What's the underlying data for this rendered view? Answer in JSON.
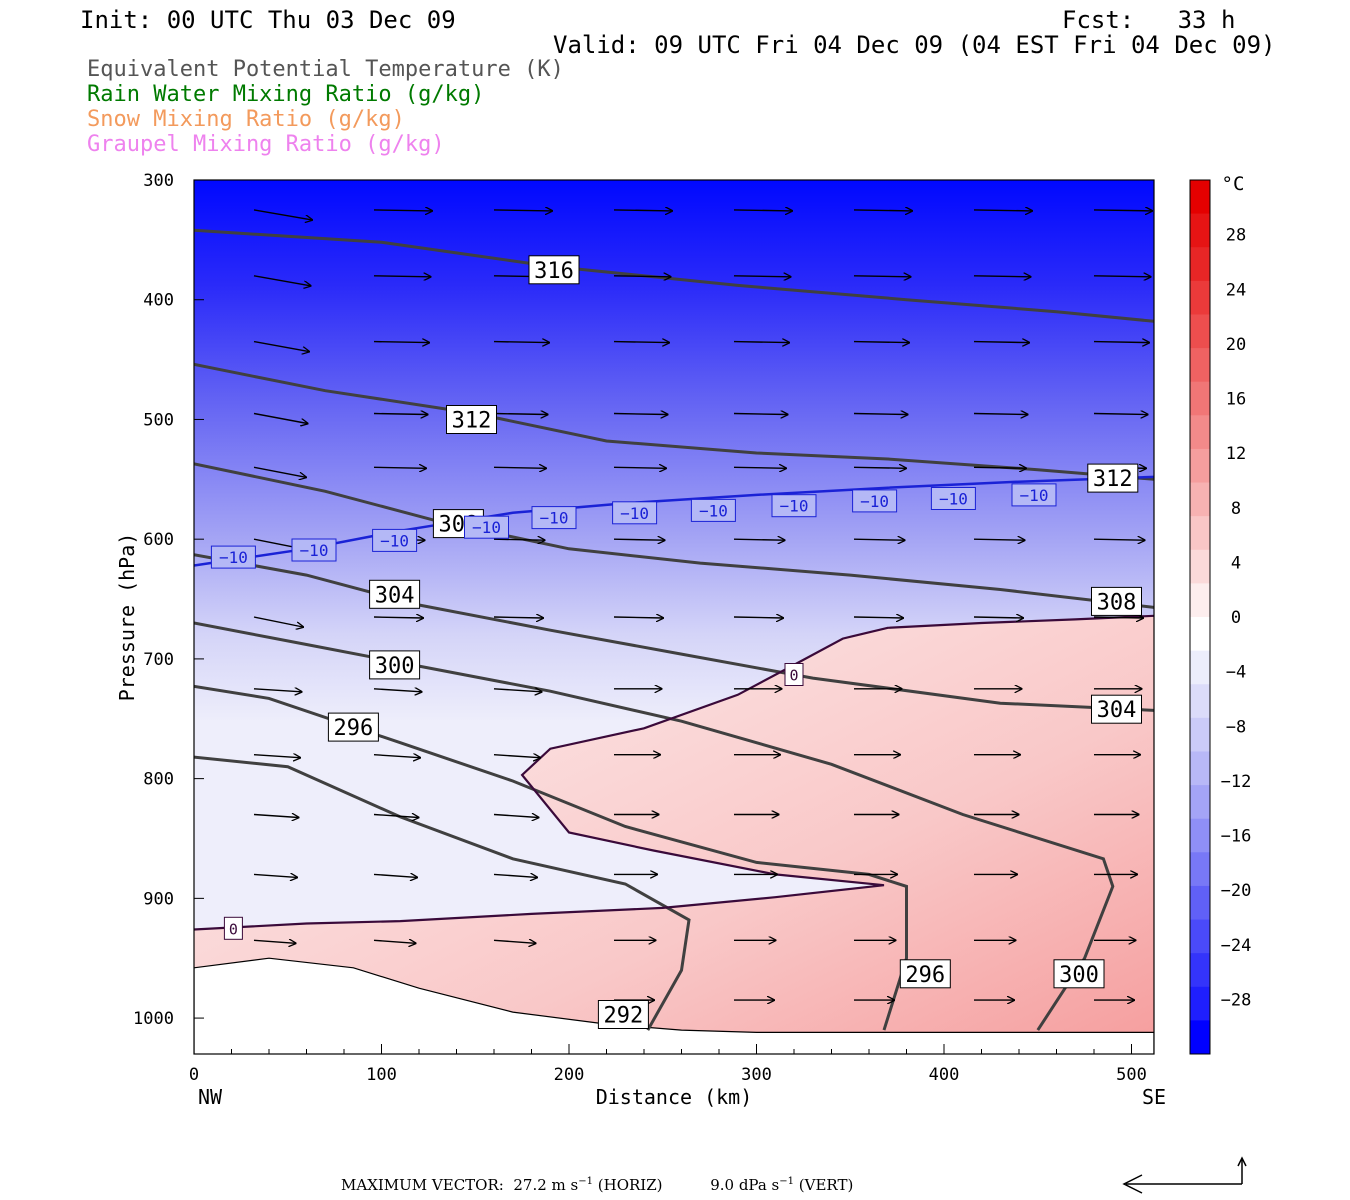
{
  "header": {
    "init": "Init: 00 UTC Thu 03 Dec 09",
    "fcst": "Fcst:   33 h",
    "valid": "Valid: 09 UTC Fri 04 Dec 09 (04 EST Fri 04 Dec 09)"
  },
  "legend": [
    {
      "label": "Equivalent Potential Temperature (K)",
      "color": "#555555"
    },
    {
      "label": "Rain Water Mixing Ratio (g/kg)",
      "color": "#007a00"
    },
    {
      "label": "Snow Mixing Ratio (g/kg)",
      "color": "#f39a5c"
    },
    {
      "label": "Graupel Mixing Ratio (g/kg)",
      "color": "#ee82ee"
    }
  ],
  "chart_data": {
    "type": "contour-cross-section",
    "xlabel": "Distance (km)",
    "ylabel": "Pressure (hPa)",
    "xlim": [
      0,
      512
    ],
    "ylim": [
      300,
      1030
    ],
    "x_ticks": [
      "0",
      "100",
      "200",
      "300",
      "400",
      "500"
    ],
    "y_ticks": [
      "300",
      "400",
      "500",
      "600",
      "700",
      "800",
      "900",
      "1000"
    ],
    "left_end": "NW",
    "right_end": "SE",
    "colorbar": {
      "unit": "°C",
      "ticks": [
        "28",
        "24",
        "20",
        "16",
        "12",
        "8",
        "4",
        "0",
        "−4",
        "−8",
        "−12",
        "−16",
        "−20",
        "−24",
        "−28"
      ],
      "colors": [
        "#0000ff",
        "#1f1ffd",
        "#3434fb",
        "#4a4af9",
        "#6060f7",
        "#7878f6",
        "#8f8ff6",
        "#a4a4f6",
        "#b8b8f7",
        "#cbcbf8",
        "#dcdcfa",
        "#ecedfc",
        "#ffffff",
        "#fdeeee",
        "#fbdada",
        "#f9c6c6",
        "#f7b2b2",
        "#f59e9e",
        "#f38a8a",
        "#f17676",
        "#ef6262",
        "#ed4e4e",
        "#eb3a3a",
        "#e82626",
        "#e61414",
        "#e40000"
      ]
    },
    "theta_e_lines": [
      {
        "label": "316",
        "points": [
          [
            0,
            342
          ],
          [
            100,
            352
          ],
          [
            190,
            372
          ],
          [
            290,
            388
          ],
          [
            380,
            400
          ],
          [
            460,
            410
          ],
          [
            512,
            418
          ]
        ]
      },
      {
        "label": "312",
        "points": [
          [
            0,
            454
          ],
          [
            70,
            476
          ],
          [
            150,
            495
          ],
          [
            220,
            518
          ],
          [
            300,
            528
          ],
          [
            370,
            533
          ],
          [
            450,
            542
          ],
          [
            512,
            550
          ]
        ]
      },
      {
        "label": "308",
        "points": [
          [
            0,
            537
          ],
          [
            70,
            560
          ],
          [
            130,
            585
          ],
          [
            200,
            608
          ],
          [
            270,
            620
          ],
          [
            350,
            630
          ],
          [
            430,
            642
          ],
          [
            512,
            657
          ]
        ]
      },
      {
        "label": "304",
        "points": [
          [
            0,
            613
          ],
          [
            60,
            630
          ],
          [
            120,
            655
          ],
          [
            190,
            676
          ],
          [
            260,
            696
          ],
          [
            330,
            716
          ],
          [
            430,
            737
          ],
          [
            512,
            743
          ]
        ]
      },
      {
        "label": "300",
        "points": [
          [
            0,
            670
          ],
          [
            60,
            688
          ],
          [
            120,
            706
          ],
          [
            190,
            727
          ],
          [
            260,
            752
          ],
          [
            340,
            788
          ],
          [
            410,
            830
          ],
          [
            485,
            867
          ],
          [
            490,
            890
          ],
          [
            475,
            950
          ],
          [
            450,
            1010
          ]
        ]
      },
      {
        "label": "296",
        "points": [
          [
            0,
            723
          ],
          [
            40,
            733
          ],
          [
            110,
            770
          ],
          [
            170,
            802
          ],
          [
            230,
            840
          ],
          [
            300,
            870
          ],
          [
            360,
            880
          ],
          [
            380,
            890
          ],
          [
            380,
            950
          ],
          [
            368,
            1010
          ]
        ]
      },
      {
        "label": "292",
        "points": [
          [
            0,
            782
          ],
          [
            50,
            790
          ],
          [
            110,
            832
          ],
          [
            170,
            867
          ],
          [
            230,
            888
          ],
          [
            264,
            918
          ],
          [
            260,
            960
          ],
          [
            242,
            1010
          ]
        ]
      }
    ],
    "theta_e_label_positions": [
      {
        "label": "316",
        "x": 192,
        "p": 375
      },
      {
        "label": "312",
        "x": 148,
        "p": 500
      },
      {
        "label": "312",
        "x": 490,
        "p": 549
      },
      {
        "label": "308",
        "x": 141,
        "p": 587
      },
      {
        "label": "308",
        "x": 492,
        "p": 652
      },
      {
        "label": "304",
        "x": 107,
        "p": 646
      },
      {
        "label": "304",
        "x": 492,
        "p": 742
      },
      {
        "label": "300",
        "x": 107,
        "p": 705
      },
      {
        "label": "300",
        "x": 472,
        "p": 963
      },
      {
        "label": "296",
        "x": 85,
        "p": 757
      },
      {
        "label": "296",
        "x": 390,
        "p": 963
      },
      {
        "label": "292",
        "x": 229,
        "p": 997
      }
    ],
    "temperature_zero_line": {
      "label": "0",
      "points": [
        [
          0,
          926
        ],
        [
          60,
          921
        ],
        [
          110,
          919
        ],
        [
          180,
          913
        ],
        [
          250,
          908
        ],
        [
          310,
          899
        ],
        [
          368,
          889
        ],
        [
          310,
          880
        ],
        [
          245,
          860
        ],
        [
          200,
          845
        ],
        [
          175,
          797
        ],
        [
          190,
          775
        ],
        [
          240,
          758
        ],
        [
          290,
          730
        ],
        [
          320,
          705
        ],
        [
          346,
          683
        ],
        [
          370,
          674
        ],
        [
          420,
          670
        ],
        [
          470,
          667
        ],
        [
          512,
          664
        ]
      ],
      "labels": [
        {
          "x": 21,
          "p": 925
        },
        {
          "x": 320,
          "p": 713
        }
      ]
    },
    "temperature_minus10_line": {
      "label": "−10",
      "points": [
        [
          0,
          622
        ],
        [
          60,
          608
        ],
        [
          110,
          593
        ],
        [
          170,
          578
        ],
        [
          230,
          570
        ],
        [
          300,
          563
        ],
        [
          370,
          557
        ],
        [
          440,
          552
        ],
        [
          512,
          548
        ]
      ],
      "labels": [
        {
          "x": 21,
          "p": 615
        },
        {
          "x": 64,
          "p": 609
        },
        {
          "x": 107,
          "p": 601
        },
        {
          "x": 156,
          "p": 590
        },
        {
          "x": 192,
          "p": 582
        },
        {
          "x": 235,
          "p": 578
        },
        {
          "x": 277,
          "p": 576
        },
        {
          "x": 320,
          "p": 572
        },
        {
          "x": 363,
          "p": 568
        },
        {
          "x": 405,
          "p": 566
        },
        {
          "x": 448,
          "p": 563
        }
      ]
    },
    "surface_pressure": [
      [
        0,
        958
      ],
      [
        40,
        950
      ],
      [
        85,
        958
      ],
      [
        120,
        975
      ],
      [
        170,
        995
      ],
      [
        220,
        1005
      ],
      [
        260,
        1010
      ],
      [
        300,
        1012
      ],
      [
        350,
        1012
      ],
      [
        512,
        1012
      ]
    ],
    "wind_vectors": {
      "rows_p": [
        325,
        380,
        435,
        495,
        540,
        600,
        665,
        725,
        780,
        830,
        880,
        935,
        985
      ],
      "cols_x": [
        32,
        96,
        160,
        224,
        288,
        352,
        416,
        480
      ]
    },
    "max_vector_horiz": "27.2 m s",
    "max_vector_vert": "9.0 dPa s"
  },
  "footer": {
    "label": "MAXIMUM VECTOR:",
    "horiz_value": "27.2 m s",
    "horiz_suffix": "(HORIZ)",
    "vert_value": "9.0 dPa s",
    "vert_suffix": "(VERT)",
    "exp": "−1"
  }
}
